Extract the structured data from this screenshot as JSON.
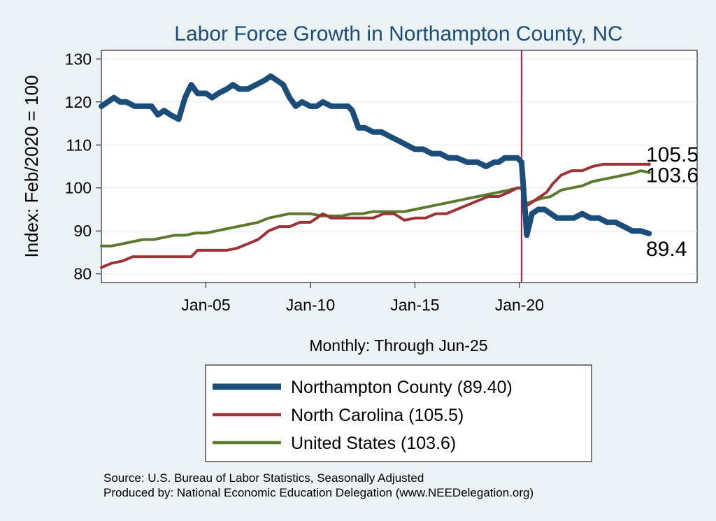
{
  "chart_data": {
    "type": "line",
    "title": "Labor Force Growth in Northampton  County, NC",
    "xlabel": "Monthly: Through Jun-25",
    "ylabel": "Index: Feb/2020 = 100",
    "ylim": [
      78,
      132
    ],
    "xlim": [
      2000,
      2028.5
    ],
    "yticks": [
      80,
      90,
      100,
      110,
      120,
      130
    ],
    "xticks": [
      {
        "value": 2005,
        "label": "Jan-05"
      },
      {
        "value": 2010,
        "label": "Jan-10"
      },
      {
        "value": 2015,
        "label": "Jan-15"
      },
      {
        "value": 2020,
        "label": "Jan-20"
      }
    ],
    "reference_line": {
      "x": 2020.1,
      "color": "#c0143c"
    },
    "series": [
      {
        "name": "Northampton  County",
        "legend": "Northampton  County (89.40)",
        "end_label": "89.4",
        "color": "#1a4d7a",
        "width": 8,
        "points": [
          [
            2000.0,
            119
          ],
          [
            2000.3,
            120
          ],
          [
            2000.6,
            121
          ],
          [
            2000.9,
            120
          ],
          [
            2001.2,
            120
          ],
          [
            2001.6,
            119
          ],
          [
            2002.0,
            119
          ],
          [
            2002.4,
            119
          ],
          [
            2002.7,
            117
          ],
          [
            2003.0,
            118
          ],
          [
            2003.3,
            117
          ],
          [
            2003.7,
            116
          ],
          [
            2004.0,
            121
          ],
          [
            2004.3,
            124
          ],
          [
            2004.6,
            122
          ],
          [
            2005.0,
            122
          ],
          [
            2005.3,
            121
          ],
          [
            2005.6,
            122
          ],
          [
            2006.0,
            123
          ],
          [
            2006.3,
            124
          ],
          [
            2006.6,
            123
          ],
          [
            2007.0,
            123
          ],
          [
            2007.4,
            124
          ],
          [
            2007.8,
            125
          ],
          [
            2008.1,
            126
          ],
          [
            2008.4,
            125
          ],
          [
            2008.7,
            124
          ],
          [
            2009.0,
            121
          ],
          [
            2009.3,
            119
          ],
          [
            2009.6,
            120
          ],
          [
            2010.0,
            119
          ],
          [
            2010.3,
            119
          ],
          [
            2010.6,
            120
          ],
          [
            2011.0,
            119
          ],
          [
            2011.4,
            119
          ],
          [
            2011.8,
            119
          ],
          [
            2012.0,
            118
          ],
          [
            2012.3,
            114
          ],
          [
            2012.6,
            114
          ],
          [
            2013.0,
            113
          ],
          [
            2013.4,
            113
          ],
          [
            2013.8,
            112
          ],
          [
            2014.2,
            111
          ],
          [
            2014.6,
            110
          ],
          [
            2015.0,
            109
          ],
          [
            2015.4,
            109
          ],
          [
            2015.8,
            108
          ],
          [
            2016.2,
            108
          ],
          [
            2016.6,
            107
          ],
          [
            2017.0,
            107
          ],
          [
            2017.5,
            106
          ],
          [
            2018.0,
            106
          ],
          [
            2018.4,
            105
          ],
          [
            2018.8,
            106
          ],
          [
            2019.0,
            106
          ],
          [
            2019.3,
            107
          ],
          [
            2019.6,
            107
          ],
          [
            2019.9,
            107
          ],
          [
            2020.1,
            106
          ],
          [
            2020.25,
            96
          ],
          [
            2020.35,
            89
          ],
          [
            2020.6,
            94
          ],
          [
            2020.9,
            95
          ],
          [
            2021.2,
            95
          ],
          [
            2021.5,
            94
          ],
          [
            2021.8,
            93
          ],
          [
            2022.2,
            93
          ],
          [
            2022.6,
            93
          ],
          [
            2023.0,
            94
          ],
          [
            2023.4,
            93
          ],
          [
            2023.8,
            93
          ],
          [
            2024.2,
            92
          ],
          [
            2024.6,
            92
          ],
          [
            2025.0,
            91
          ],
          [
            2025.4,
            90
          ],
          [
            2025.8,
            90
          ],
          [
            2026.2,
            89.4
          ]
        ]
      },
      {
        "name": "North Carolina",
        "legend": "North Carolina (105.5)",
        "end_label": "105.5",
        "color": "#9c3336",
        "width": 4,
        "points": [
          [
            2000.0,
            81.5
          ],
          [
            2000.5,
            82.5
          ],
          [
            2001.0,
            83
          ],
          [
            2001.5,
            84
          ],
          [
            2002.0,
            84
          ],
          [
            2002.5,
            84
          ],
          [
            2003.0,
            84
          ],
          [
            2003.5,
            84
          ],
          [
            2004.0,
            84
          ],
          [
            2004.3,
            84
          ],
          [
            2004.6,
            85.5
          ],
          [
            2005.0,
            85.5
          ],
          [
            2005.5,
            85.5
          ],
          [
            2006.0,
            85.5
          ],
          [
            2006.5,
            86
          ],
          [
            2007.0,
            87
          ],
          [
            2007.5,
            88
          ],
          [
            2008.0,
            90
          ],
          [
            2008.5,
            91
          ],
          [
            2009.0,
            91
          ],
          [
            2009.5,
            92
          ],
          [
            2010.0,
            92
          ],
          [
            2010.3,
            93
          ],
          [
            2010.6,
            94
          ],
          [
            2011.0,
            93
          ],
          [
            2011.5,
            93
          ],
          [
            2012.0,
            93
          ],
          [
            2012.5,
            93
          ],
          [
            2013.0,
            93
          ],
          [
            2013.5,
            94
          ],
          [
            2014.0,
            94
          ],
          [
            2014.5,
            92.5
          ],
          [
            2015.0,
            93
          ],
          [
            2015.5,
            93
          ],
          [
            2016.0,
            94
          ],
          [
            2016.5,
            94
          ],
          [
            2017.0,
            95
          ],
          [
            2017.5,
            96
          ],
          [
            2018.0,
            97
          ],
          [
            2018.5,
            98
          ],
          [
            2019.0,
            98
          ],
          [
            2019.5,
            99
          ],
          [
            2019.9,
            100
          ],
          [
            2020.1,
            100
          ],
          [
            2020.25,
            97
          ],
          [
            2020.4,
            96
          ],
          [
            2020.7,
            97
          ],
          [
            2021.0,
            98
          ],
          [
            2021.3,
            99
          ],
          [
            2021.6,
            101
          ],
          [
            2022.0,
            103
          ],
          [
            2022.5,
            104
          ],
          [
            2023.0,
            104
          ],
          [
            2023.5,
            105
          ],
          [
            2024.0,
            105.5
          ],
          [
            2024.5,
            105.5
          ],
          [
            2025.0,
            105.5
          ],
          [
            2025.5,
            105.5
          ],
          [
            2026.2,
            105.5
          ]
        ]
      },
      {
        "name": "United States",
        "legend": "United States (103.6)",
        "end_label": "103.6",
        "color": "#5b7a2e",
        "width": 4,
        "points": [
          [
            2000.0,
            86.5
          ],
          [
            2000.5,
            86.5
          ],
          [
            2001.0,
            87
          ],
          [
            2001.5,
            87.5
          ],
          [
            2002.0,
            88
          ],
          [
            2002.5,
            88
          ],
          [
            2003.0,
            88.5
          ],
          [
            2003.5,
            89
          ],
          [
            2004.0,
            89
          ],
          [
            2004.5,
            89.5
          ],
          [
            2005.0,
            89.5
          ],
          [
            2005.5,
            90
          ],
          [
            2006.0,
            90.5
          ],
          [
            2006.5,
            91
          ],
          [
            2007.0,
            91.5
          ],
          [
            2007.5,
            92
          ],
          [
            2008.0,
            93
          ],
          [
            2008.5,
            93.5
          ],
          [
            2009.0,
            94
          ],
          [
            2009.5,
            94
          ],
          [
            2010.0,
            94
          ],
          [
            2010.5,
            93.5
          ],
          [
            2011.0,
            93.5
          ],
          [
            2011.5,
            93.5
          ],
          [
            2012.0,
            94
          ],
          [
            2012.5,
            94
          ],
          [
            2013.0,
            94.5
          ],
          [
            2013.5,
            94.5
          ],
          [
            2014.0,
            94.5
          ],
          [
            2014.5,
            94.5
          ],
          [
            2015.0,
            95
          ],
          [
            2015.5,
            95.5
          ],
          [
            2016.0,
            96
          ],
          [
            2016.5,
            96.5
          ],
          [
            2017.0,
            97
          ],
          [
            2017.5,
            97.5
          ],
          [
            2018.0,
            98
          ],
          [
            2018.5,
            98.5
          ],
          [
            2019.0,
            99
          ],
          [
            2019.5,
            99.5
          ],
          [
            2019.9,
            100
          ],
          [
            2020.1,
            100
          ],
          [
            2020.25,
            96
          ],
          [
            2020.4,
            96.5
          ],
          [
            2020.7,
            97
          ],
          [
            2021.0,
            97.5
          ],
          [
            2021.5,
            98
          ],
          [
            2022.0,
            99.5
          ],
          [
            2022.5,
            100
          ],
          [
            2023.0,
            100.5
          ],
          [
            2023.5,
            101.5
          ],
          [
            2024.0,
            102
          ],
          [
            2024.5,
            102.5
          ],
          [
            2025.0,
            103
          ],
          [
            2025.5,
            103.5
          ],
          [
            2025.8,
            104
          ],
          [
            2026.2,
            103.6
          ]
        ]
      }
    ],
    "legend_position": "bottom-center"
  },
  "source_line": "Source: U.S. Bureau of Labor Statistics, Seasonally Adjusted",
  "produced_by_line": "Produced by: National Economic Education Delegation (www.NEEDelegation.org)"
}
